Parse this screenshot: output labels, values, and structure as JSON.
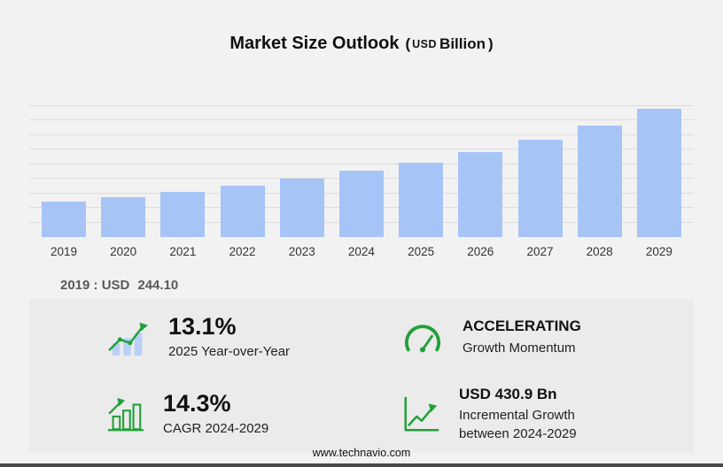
{
  "header": {
    "title": "Market Size Outlook",
    "paren_open": "(",
    "currency": "USD",
    "unit": "Billion",
    "paren_close": ")"
  },
  "chart_data": {
    "type": "bar",
    "title": "Market Size Outlook (USD Billion)",
    "categories": [
      "2019",
      "2020",
      "2021",
      "2022",
      "2023",
      "2024",
      "2025",
      "2026",
      "2027",
      "2028",
      "2029"
    ],
    "values": [
      244.1,
      276.3,
      312.7,
      354.0,
      400.7,
      453.6,
      513.0,
      583.0,
      667.0,
      768.0,
      884.5
    ],
    "xlabel": "",
    "ylabel": "",
    "ylim": [
      0,
      900
    ],
    "grid_step": 100,
    "grid": true,
    "legend": false,
    "bar_color": "#a7c4f7"
  },
  "annotation": {
    "label": "2019 : USD",
    "value": "244.10"
  },
  "stats": [
    {
      "icon": "yoy-growth-bars-icon",
      "value": "13.1%",
      "label": "2025 Year-over-Year"
    },
    {
      "icon": "speedometer-icon",
      "value": "ACCELERATING",
      "label": "Growth Momentum"
    },
    {
      "icon": "cagr-bar-chart-icon",
      "value": "14.3%",
      "label": "CAGR 2024-2029"
    },
    {
      "icon": "incremental-growth-chart-icon",
      "value": "USD 430.9 Bn",
      "label": "Incremental Growth between 2024-2029"
    }
  ],
  "footer": {
    "website": "www.technavio.com"
  },
  "colors": {
    "background": "#f2f2f2",
    "panel": "#ebebeb",
    "bar": "#a7c4f7",
    "accent_green": "#21a038",
    "gridline": "#dcdcdc",
    "title_text": "#111111",
    "muted_text": "#595959",
    "bottom_bar": "#4a4a4a"
  }
}
